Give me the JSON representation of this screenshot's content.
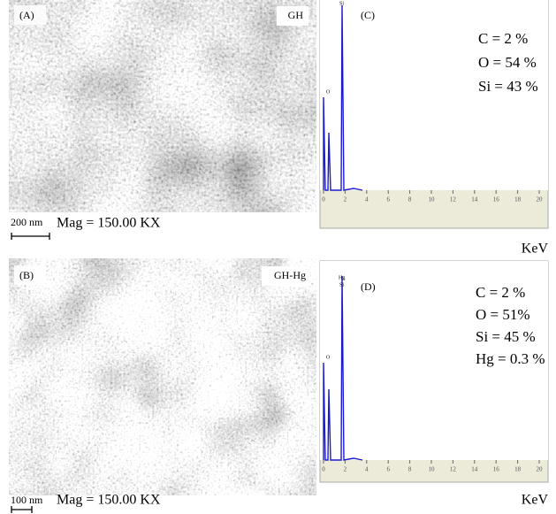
{
  "panels": [
    {
      "label": "(A)",
      "sample": "GH",
      "scale": "200 nm",
      "magnification": "Mag = 150.00 KX"
    },
    {
      "label": "(B)",
      "sample": "GH-Hg",
      "scale": "100 nm",
      "magnification": "Mag = 150.00 KX"
    }
  ],
  "spectra": [
    {
      "label": "(C)",
      "composition": [
        "C = 2 %",
        "O = 54 %",
        "Si = 43 %"
      ],
      "peaks": [
        "O",
        "Si"
      ],
      "xticks": [
        0,
        2,
        4,
        6,
        8,
        10,
        12,
        14,
        16,
        18,
        20
      ],
      "xlabel": "KeV"
    },
    {
      "label": "(D)",
      "composition": [
        "C = 2 %",
        "O = 51%",
        "Si = 45 %",
        "Hg = 0.3 %"
      ],
      "peaks": [
        "O",
        "Si",
        "Hg"
      ],
      "xticks": [
        0,
        2,
        4,
        6,
        8,
        10,
        12,
        14,
        16,
        18,
        20
      ],
      "xlabel": "KeV"
    }
  ]
}
